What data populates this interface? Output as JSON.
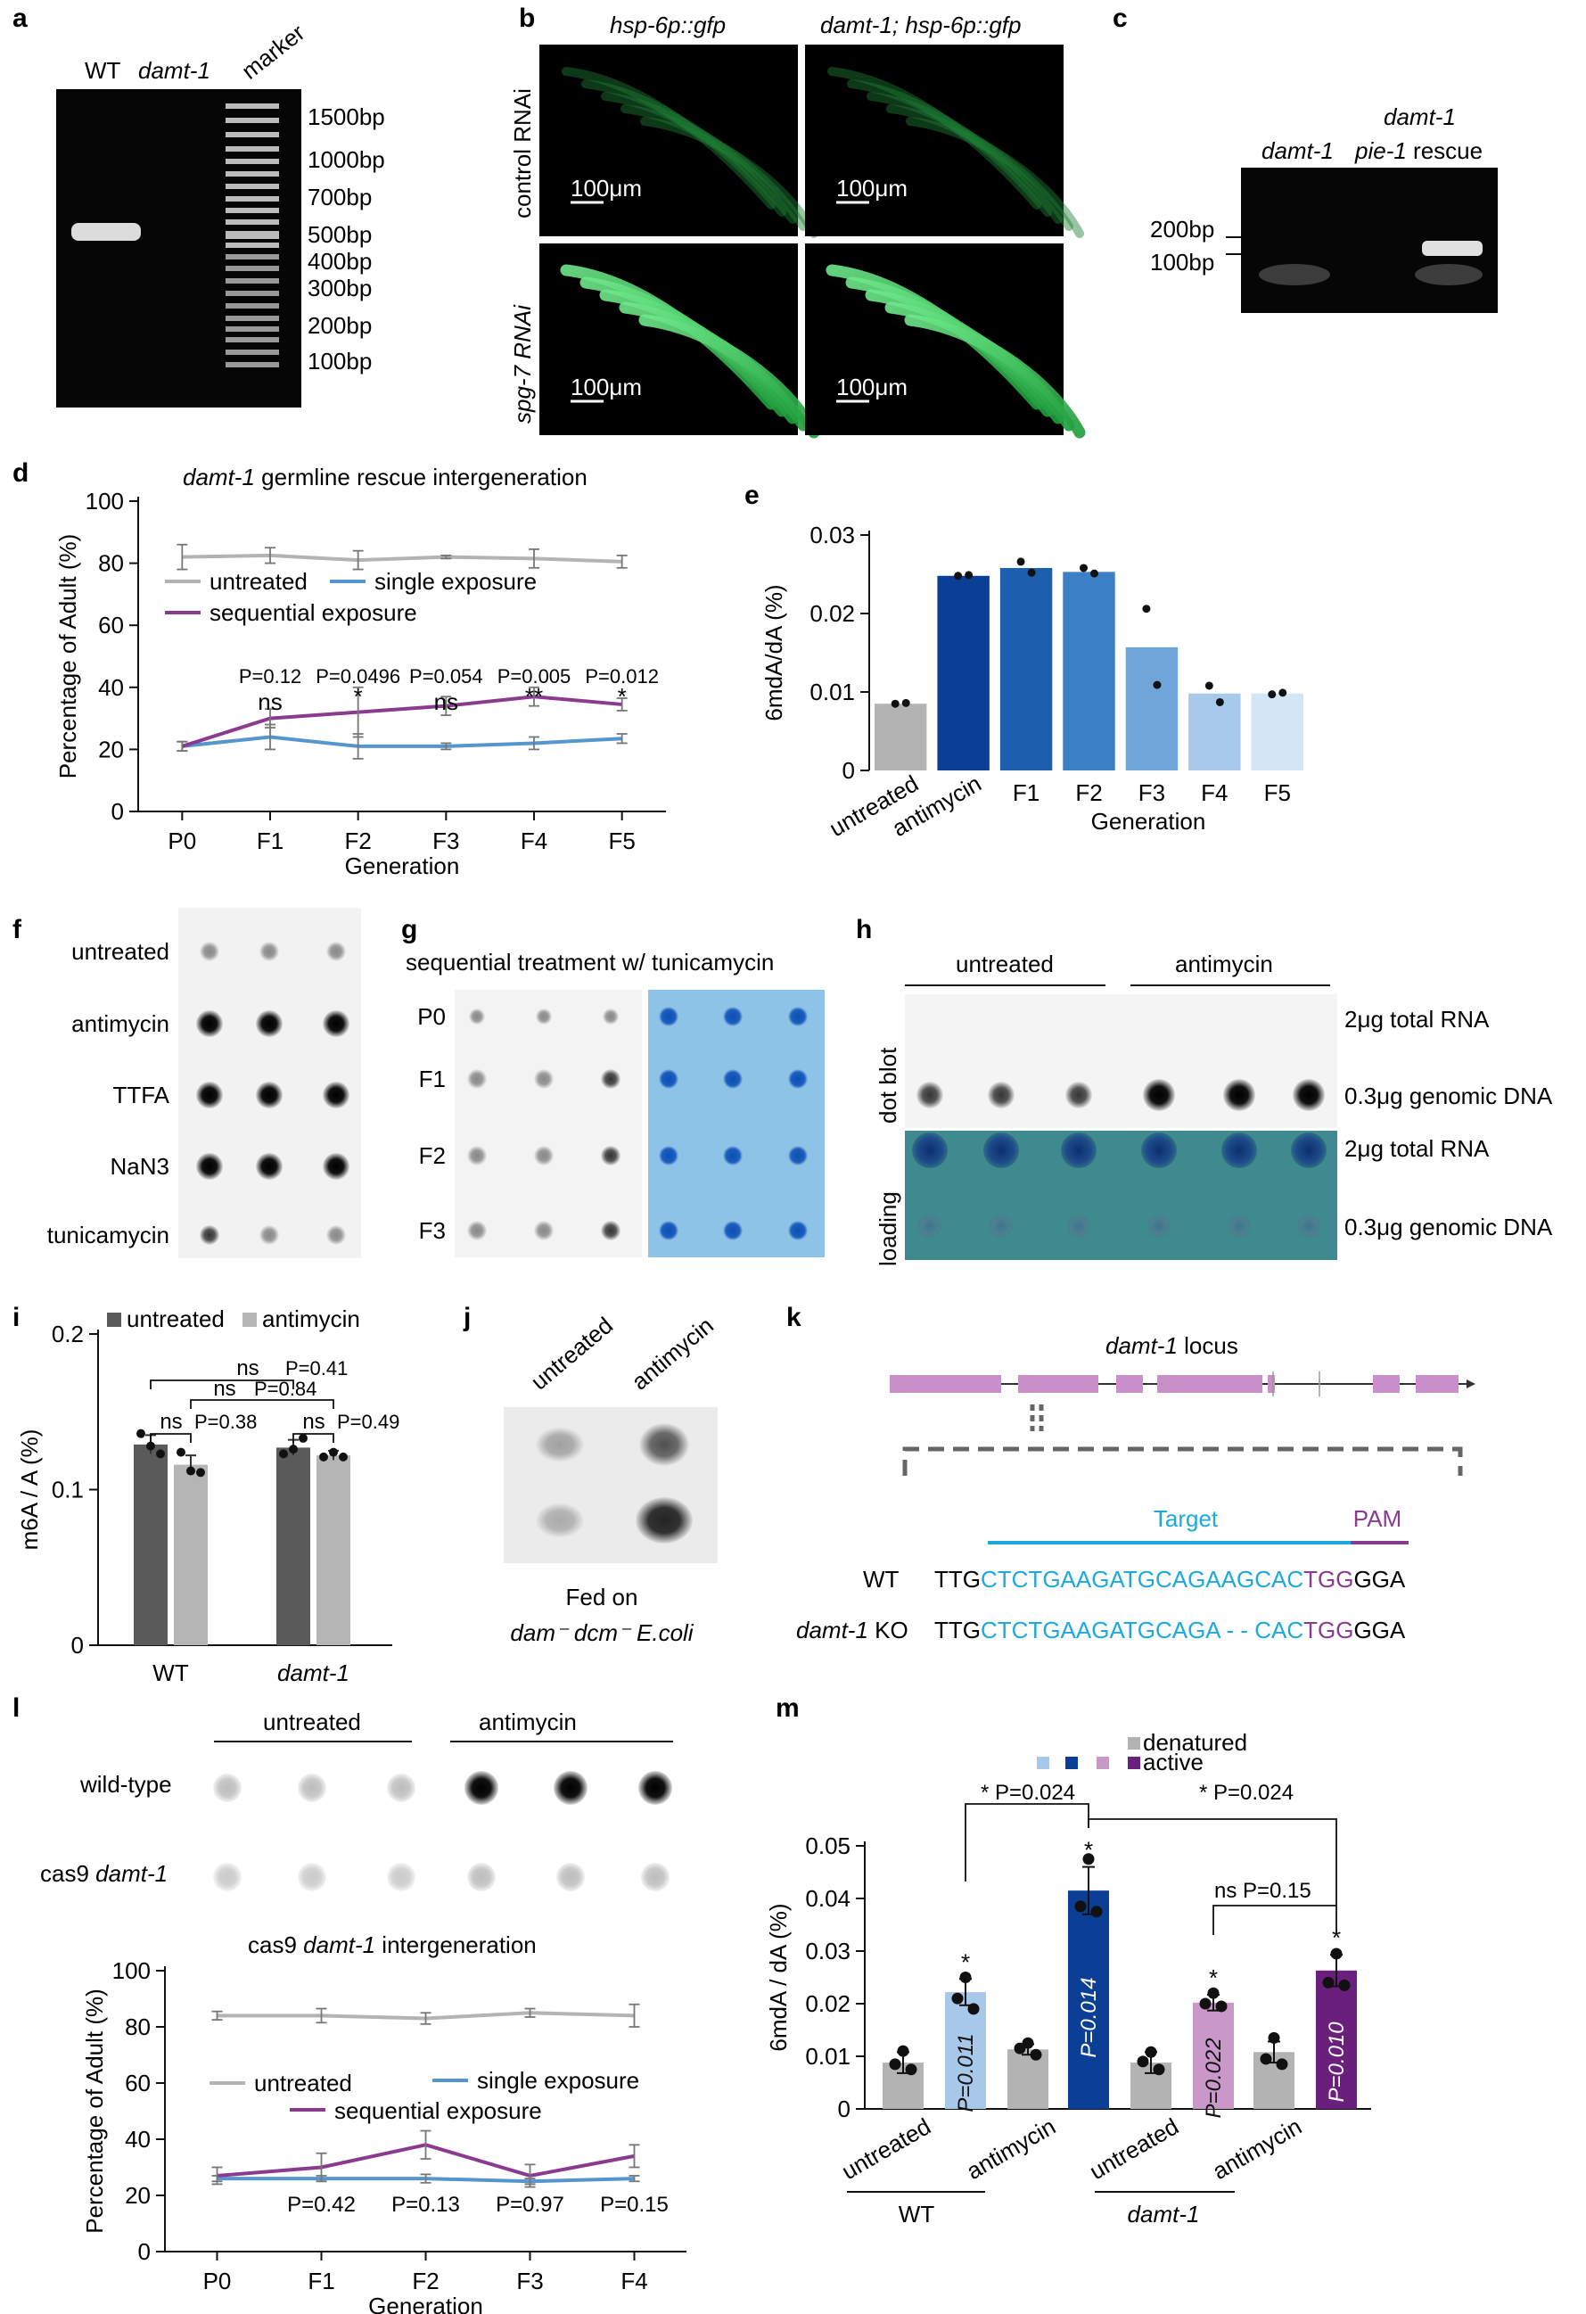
{
  "panels": {
    "a": {
      "letter": "a",
      "lane_labels": [
        "WT",
        "damt-1",
        "marker"
      ],
      "marker_labels": [
        "1500bp",
        "1000bp",
        "700bp",
        "500bp",
        "400bp",
        "300bp",
        "200bp",
        "100bp"
      ]
    },
    "b": {
      "letter": "b",
      "col_labels": [
        "hsp-6p::gfp",
        "damt-1; hsp-6p::gfp"
      ],
      "row_labels": [
        "control RNAi",
        "spg-7 RNAi"
      ],
      "scale": "100μm"
    },
    "c": {
      "letter": "c",
      "header_top": "damt-1",
      "lane_labels": [
        "damt-1",
        "pie-1 rescue"
      ],
      "marker_labels": [
        "200bp",
        "100bp"
      ]
    },
    "d": {
      "letter": "d",
      "title": "damt-1 germline rescue intergeneration",
      "title_italic": "damt-1",
      "title_rest": " germline rescue intergeneration",
      "pvals": [
        "P=0.12",
        "P=0.0496",
        "P=0.054",
        "P=0.005",
        "P=0.012"
      ],
      "sig": [
        "ns",
        "*",
        "ns",
        "**",
        "*"
      ]
    },
    "e": {
      "letter": "e"
    },
    "f": {
      "letter": "f",
      "rows": [
        "untreated",
        "antimycin",
        "TTFA",
        "NaN3",
        "tunicamycin"
      ]
    },
    "g": {
      "letter": "g",
      "title": "sequential treatment w/ tunicamycin",
      "rows": [
        "P0",
        "F1",
        "F2",
        "F3"
      ]
    },
    "h": {
      "letter": "h",
      "cols": [
        "untreated",
        "antimycin"
      ],
      "side": [
        "dot blot",
        "loading"
      ],
      "rows": [
        "2μg total RNA",
        "0.3μg genomic DNA",
        "2μg total RNA",
        "0.3μg genomic DNA"
      ]
    },
    "i": {
      "letter": "i",
      "legend": [
        "untreated",
        "antimycin"
      ],
      "stats": [
        "ns",
        "P=0.41",
        "ns",
        "P=0.84",
        "ns",
        "P=0.38",
        "ns",
        "P=0.49"
      ]
    },
    "j": {
      "letter": "j",
      "cols": [
        "untreated",
        "antimycin"
      ],
      "caption1": "Fed on",
      "caption2": "dam⁻ dcm⁻ E.coli"
    },
    "k": {
      "letter": "k",
      "title": "damt-1 locus",
      "target": "Target",
      "pam": "PAM",
      "wt_label": "WT",
      "ko_label": "damt-1 KO",
      "seq_pre": "TTG",
      "wt_target": "CTCTGAAGATGCAGAAGCAC",
      "ko_target": "CTCTGAAGATGCAGA - - CAC",
      "pam_seq": "TGG",
      "seq_post": "GGA"
    },
    "l": {
      "letter": "l",
      "cols": [
        "untreated",
        "antimycin"
      ],
      "rows": [
        "wild-type",
        "cas9 damt-1"
      ],
      "title": "cas9 damt-1 intergeneration",
      "pvals": [
        "P=0.42",
        "P=0.13",
        "P=0.97",
        "P=0.15"
      ]
    },
    "m": {
      "letter": "m",
      "legend": [
        "denatured",
        "active"
      ],
      "groups": [
        "WT",
        "damt-1"
      ],
      "top_stats": [
        "* P=0.024",
        "* P=0.024",
        "ns P=0.15"
      ],
      "bar_pvals": [
        "P=0.011",
        "P=0.014",
        "P=0.022",
        "P=0.010"
      ]
    }
  },
  "chart_data": [
    {
      "id": "d",
      "type": "line",
      "categories": [
        "P0",
        "F1",
        "F2",
        "F3",
        "F4",
        "F5"
      ],
      "xlabel": "Generation",
      "ylabel": "Percentage of Adult (%)",
      "ylim": [
        0,
        100
      ],
      "yticks": [
        0,
        20,
        40,
        60,
        80,
        100
      ],
      "series": [
        {
          "name": "untreated",
          "color": "#b3b3b3",
          "values": [
            82,
            82.5,
            81,
            82,
            81.5,
            80.5
          ],
          "err": [
            4,
            2.5,
            3,
            0.5,
            3,
            2
          ]
        },
        {
          "name": "single exposure",
          "color": "#5596cf",
          "values": [
            21,
            24,
            21,
            21,
            22,
            23.5
          ],
          "err": [
            1.5,
            4,
            4,
            1,
            2,
            1.5
          ]
        },
        {
          "name": "sequential exposure",
          "color": "#8a3b8f",
          "values": [
            21,
            30,
            32,
            34,
            37,
            34.5
          ],
          "err": [
            1.5,
            3,
            8,
            3,
            3,
            2
          ]
        }
      ]
    },
    {
      "id": "e",
      "type": "bar",
      "categories": [
        "untreated",
        "antimycin",
        "F1",
        "F2",
        "F3",
        "F4",
        "F5"
      ],
      "xlabel": "Generation",
      "ylabel": "6mdA/dA (%)",
      "ylim": [
        0,
        0.03
      ],
      "yticks": [
        "0",
        "0.01",
        "0.02",
        "0.03"
      ],
      "values": [
        0.0085,
        0.0248,
        0.0258,
        0.0253,
        0.0157,
        0.0098,
        0.0098
      ],
      "points": [
        [
          0.0085,
          0.0086
        ],
        [
          0.0248,
          0.0249
        ],
        [
          0.0266,
          0.0252
        ],
        [
          0.0258,
          0.0251
        ],
        [
          0.0206,
          0.0109
        ],
        [
          0.0108,
          0.0087
        ],
        [
          0.0097,
          0.0099
        ]
      ],
      "colors": [
        "#b3b3b3",
        "#0a3f95",
        "#1e5eae",
        "#3b7fc4",
        "#6fa6da",
        "#a9c9ea",
        "#d2e6f6"
      ]
    },
    {
      "id": "i",
      "type": "bar",
      "categories": [
        "WT",
        "damt-1"
      ],
      "ylabel": "m6A / A (%)",
      "ylim": [
        0,
        0.2
      ],
      "yticks": [
        "0",
        "0.1",
        "0.2"
      ],
      "series": [
        {
          "name": "untreated",
          "color": "#5a5a5a",
          "values": [
            0.129,
            0.127
          ],
          "err": [
            0.006,
            0.005
          ]
        },
        {
          "name": "antimycin",
          "color": "#b5b5b5",
          "values": [
            0.116,
            0.122
          ],
          "err": [
            0.006,
            0.003
          ]
        }
      ],
      "points": [
        [
          [
            0.136,
            0.128,
            0.123
          ],
          [
            0.123,
            0.126,
            0.133
          ]
        ],
        [
          [
            0.124,
            0.112,
            0.111
          ],
          [
            0.121,
            0.124,
            0.121
          ]
        ]
      ]
    },
    {
      "id": "l",
      "type": "line",
      "categories": [
        "P0",
        "F1",
        "F2",
        "F3",
        "F4"
      ],
      "xlabel": "Generation",
      "ylabel": "Percentage of Adult (%)",
      "ylim": [
        0,
        100
      ],
      "yticks": [
        0,
        20,
        40,
        60,
        80,
        100
      ],
      "series": [
        {
          "name": "untreated",
          "color": "#b3b3b3",
          "values": [
            84,
            84,
            83,
            85,
            84
          ],
          "err": [
            1.5,
            2.5,
            2,
            1.5,
            4
          ]
        },
        {
          "name": "single exposure",
          "color": "#5596cf",
          "values": [
            26,
            26,
            26,
            25,
            26
          ],
          "err": [
            1,
            1,
            1.5,
            1,
            1
          ]
        },
        {
          "name": "sequential exposure",
          "color": "#8a3b8f",
          "values": [
            27,
            30,
            38,
            27,
            34
          ],
          "err": [
            3,
            5,
            5,
            4,
            4
          ]
        }
      ]
    },
    {
      "id": "m",
      "type": "bar",
      "categories": [
        "untreated",
        "untreated",
        "antimycin",
        "antimycin",
        "untreated",
        "untreated",
        "antimycin",
        "antimycin"
      ],
      "ylabel": "6mdA / dA (%)",
      "ylim": [
        0,
        0.05
      ],
      "yticks": [
        "0",
        "0.01",
        "0.02",
        "0.03",
        "0.04",
        "0.05"
      ],
      "values": [
        0.0088,
        0.0222,
        0.0113,
        0.0415,
        0.0088,
        0.0202,
        0.0108,
        0.0263
      ],
      "err": [
        0.002,
        0.0025,
        0.001,
        0.0045,
        0.002,
        0.0015,
        0.002,
        0.003
      ],
      "colors": [
        "#b3b3b3",
        "#a8c8ea",
        "#b3b3b3",
        "#0a3f95",
        "#b3b3b3",
        "#c998c8",
        "#b3b3b3",
        "#6b1f7c"
      ],
      "points": [
        [
          0.011,
          0.0085,
          0.0075
        ],
        [
          0.025,
          0.021,
          0.019
        ],
        [
          0.0125,
          0.0115,
          0.0103
        ],
        [
          0.0475,
          0.0385,
          0.0375
        ],
        [
          0.0108,
          0.009,
          0.0075
        ],
        [
          0.022,
          0.02,
          0.0195
        ],
        [
          0.0135,
          0.0095,
          0.0085
        ],
        [
          0.0295,
          0.024,
          0.0235
        ]
      ]
    }
  ]
}
